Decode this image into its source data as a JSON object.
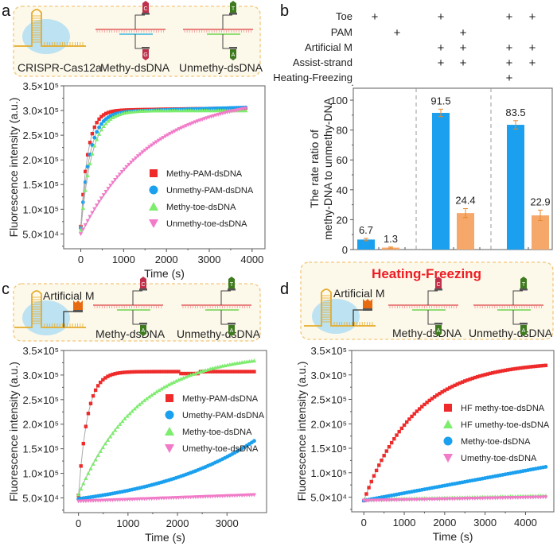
{
  "panels": {
    "a": {
      "letter": "a",
      "schematic_labels": [
        "CRISPR-Cas12a",
        "Methy-dsDNA",
        "Unmethy-dsDNA"
      ],
      "bases": {
        "methy": [
          "C",
          "G"
        ],
        "unmethy": [
          "T",
          "A"
        ]
      }
    },
    "b": {
      "letter": "b"
    },
    "c": {
      "letter": "c",
      "schematic_labels": [
        "Artificial M",
        "Methy-dsDNA",
        "Unmethy-dsDNA"
      ],
      "bases": {
        "methy": [
          "C",
          "A"
        ],
        "unmethy": [
          "T",
          "A"
        ]
      }
    },
    "d": {
      "letter": "d",
      "title": "Heating-Freezing",
      "schematic_labels": [
        "Artificial M",
        "Methy-dsDNA",
        "Unmethy-dsDNA"
      ],
      "bases": {
        "methy": [
          "C",
          "A"
        ],
        "unmethy": [
          "T",
          "A"
        ]
      }
    }
  },
  "colors": {
    "red": "#ee2a2a",
    "blue": "#1aa0ee",
    "green": "#7ded6e",
    "pink": "#f27ac8",
    "bar_blue": "#1aa0ee",
    "bar_orange": "#f6a76a",
    "hf_title": "#ee1c24"
  },
  "chart_data": [
    {
      "id": "a",
      "type": "scatter",
      "xlabel": "Time (s)",
      "ylabel": "Fluorescence intensity (a.u.)",
      "xlim": [
        -400,
        4300
      ],
      "ylim": [
        20000,
        350000
      ],
      "xticks": [
        0,
        1000,
        2000,
        3000,
        4000
      ],
      "yticks": [
        50000,
        100000,
        150000,
        200000,
        250000,
        300000,
        350000
      ],
      "ytick_labels": [
        "5.0×10⁴",
        "1.0×10⁵",
        "1.5×10⁵",
        "2.0×10⁵",
        "2.5×10⁵",
        "3.0×10⁵",
        "3.5×10⁵"
      ],
      "legend_position": "center-right",
      "series": [
        {
          "name": "Methy-PAM-dsDNA",
          "marker": "square",
          "color": "#ee2a2a",
          "x_max": 3850,
          "model": {
            "kind": "sat",
            "y0": 65000,
            "ymax": 300000,
            "k": 0.006,
            "tail": 5000
          }
        },
        {
          "name": "Unmethy-PAM-dsDNA",
          "marker": "circle",
          "color": "#1aa0ee",
          "x_max": 3850,
          "model": {
            "kind": "sat",
            "y0": 62000,
            "ymax": 296000,
            "k": 0.0047,
            "tail": 10000
          }
        },
        {
          "name": "Methy-toe-dsDNA",
          "marker": "triangle-up",
          "color": "#7ded6e",
          "x_max": 3850,
          "model": {
            "kind": "sat",
            "y0": 58000,
            "ymax": 300000,
            "k": 0.0038,
            "tail": 0
          }
        },
        {
          "name": "Unmethy-toe-dsDNA",
          "marker": "triangle-down",
          "color": "#f27ac8",
          "x_max": 3850,
          "model": {
            "kind": "sigm",
            "y0": 50000,
            "ymax": 330000,
            "k": 0.00062,
            "tail": 0
          }
        }
      ]
    },
    {
      "id": "b",
      "type": "bar",
      "ylabel": "The rate ratio of\nmethy-DNA to unmethy-DNA",
      "ylim": [
        0,
        108
      ],
      "yticks": [
        0,
        20,
        40,
        60,
        80,
        100
      ],
      "conditions": [
        "Toe",
        "PAM",
        "Artificial M",
        "Assist-strand",
        "Heating-Freezing"
      ],
      "condition_matrix": [
        [
          true,
          false,
          false,
          false,
          false
        ],
        [
          false,
          true,
          false,
          false,
          false
        ],
        [
          true,
          false,
          true,
          true,
          false
        ],
        [
          false,
          true,
          true,
          true,
          false
        ],
        [
          true,
          false,
          true,
          true,
          true
        ],
        [
          true,
          false,
          true,
          true,
          false
        ]
      ],
      "plus_symbol": "+",
      "values": [
        6.7,
        1.3,
        91.5,
        24.4,
        83.5,
        22.9
      ],
      "errors": [
        0.8,
        0.4,
        2.5,
        3.0,
        2.8,
        3.5
      ],
      "value_labels": [
        "6.7",
        "1.3",
        "91.5",
        "24.4",
        "83.5",
        "22.9"
      ],
      "bar_colors": [
        "#1aa0ee",
        "#f6a76a",
        "#1aa0ee",
        "#f6a76a",
        "#1aa0ee",
        "#f6a76a"
      ]
    },
    {
      "id": "c",
      "type": "scatter",
      "xlabel": "Time (s)",
      "ylabel": "Fluorescence intensity (a.u.)",
      "xlim": [
        -300,
        3800
      ],
      "ylim": [
        20000,
        350000
      ],
      "xticks": [
        0,
        1000,
        2000,
        3000
      ],
      "yticks": [
        50000,
        100000,
        150000,
        200000,
        250000,
        300000,
        350000
      ],
      "ytick_labels": [
        "5.0×10⁴",
        "1.0×10⁵",
        "1.5×10⁵",
        "2.0×10⁵",
        "2.5×10⁵",
        "3.0×10⁵",
        "3.5×10⁵"
      ],
      "legend_position": "upper-right",
      "series": [
        {
          "name": "Methy-PAM-dsDNA",
          "marker": "square",
          "color": "#ee2a2a",
          "x_max": 3550,
          "model": {
            "kind": "sat",
            "y0": 55000,
            "ymax": 307000,
            "k": 0.0055,
            "dip": true
          }
        },
        {
          "name": "Umethy-PAM-dsDNA",
          "marker": "circle",
          "color": "#1aa0ee",
          "x_max": 3550,
          "model": {
            "kind": "exp",
            "y0": 48000,
            "y1": 166000,
            "curv": 1.6
          }
        },
        {
          "name": "Methy-toe-dsDNA",
          "marker": "triangle-up",
          "color": "#7ded6e",
          "x_max": 3550,
          "model": {
            "kind": "sat",
            "y0": 57000,
            "ymax": 345000,
            "k": 0.00082,
            "tail": 0
          }
        },
        {
          "name": "Umethy-toe-dsDNA",
          "marker": "triangle-down",
          "color": "#f27ac8",
          "x_max": 3550,
          "model": {
            "kind": "lin",
            "y0": 43000,
            "y1": 56000
          }
        }
      ]
    },
    {
      "id": "d",
      "type": "scatter",
      "xlabel": "Time (s)",
      "ylabel": "Fluorescence intensity (a.u.)",
      "xlim": [
        -300,
        4700
      ],
      "ylim": [
        20000,
        350000
      ],
      "xticks": [
        0,
        1000,
        2000,
        3000,
        4000
      ],
      "yticks": [
        50000,
        100000,
        150000,
        200000,
        250000,
        300000,
        350000
      ],
      "ytick_labels": [
        "5.0×10⁴",
        "1.0×10⁵",
        "1.5×10⁵",
        "2.0×10⁵",
        "2.5×10⁵",
        "3.0×10⁵",
        "3.5×10⁵"
      ],
      "legend_position": "center-right",
      "series": [
        {
          "name": "HF methy-toe-dsDNA",
          "marker": "square",
          "color": "#ee2a2a",
          "x_max": 4500,
          "model": {
            "kind": "sat",
            "y0": 43000,
            "ymax": 328000,
            "k": 0.00078,
            "tail": 0
          }
        },
        {
          "name": "HF umethy-toe-dsDNA",
          "marker": "triangle-up",
          "color": "#7ded6e",
          "x_max": 4500,
          "model": {
            "kind": "lin",
            "y0": 45000,
            "y1": 53000
          }
        },
        {
          "name": "Methy-toe-dsDNA",
          "marker": "circle",
          "color": "#1aa0ee",
          "x_max": 4500,
          "model": {
            "kind": "lin",
            "y0": 43000,
            "y1": 112000
          }
        },
        {
          "name": "Umethy-toe-dsDNA",
          "marker": "triangle-down",
          "color": "#f27ac8",
          "x_max": 4500,
          "model": {
            "kind": "lin",
            "y0": 43000,
            "y1": 50000
          }
        }
      ]
    }
  ]
}
